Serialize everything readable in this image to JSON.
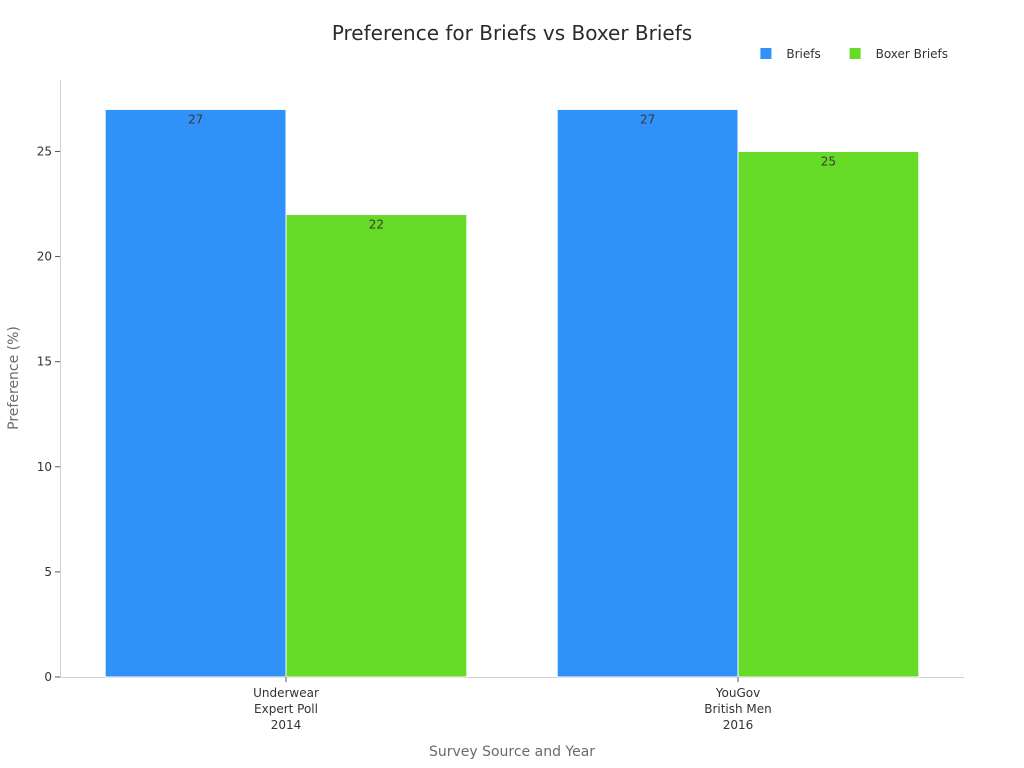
{
  "chart_data": {
    "type": "bar",
    "title": "Preference for Briefs vs Boxer Briefs",
    "xlabel": "Survey Source and Year",
    "ylabel": "Preference (%)",
    "categories": [
      [
        "Underwear",
        "Expert Poll",
        "2014"
      ],
      [
        "YouGov",
        "British Men",
        "2016"
      ]
    ],
    "series": [
      {
        "name": "Briefs",
        "color": "#3091f8",
        "values": [
          27,
          27
        ]
      },
      {
        "name": "Boxer Briefs",
        "color": "#66db27",
        "values": [
          22,
          25
        ]
      }
    ],
    "ylim": [
      0,
      28.4
    ],
    "yticks": [
      0,
      5,
      10,
      15,
      20,
      25
    ],
    "legend_position": "top-right",
    "grid": false
  }
}
